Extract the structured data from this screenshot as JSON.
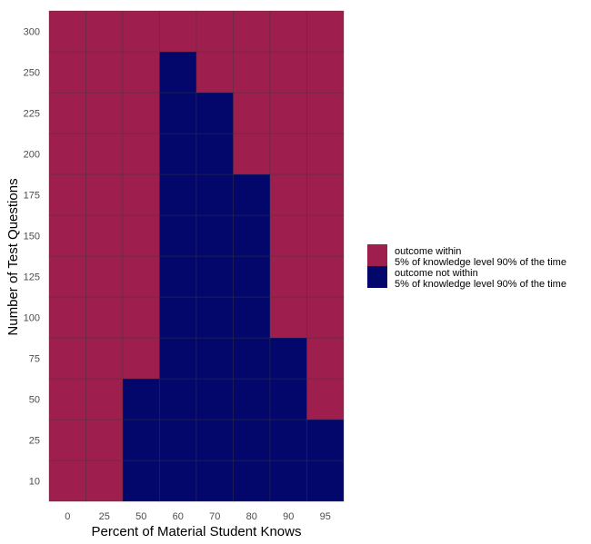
{
  "chart_data": {
    "type": "heatmap",
    "xlabel": "Percent of Material Student Knows",
    "ylabel": "Number of Test Questions",
    "x_categories": [
      "0",
      "25",
      "50",
      "60",
      "70",
      "80",
      "90",
      "95"
    ],
    "y_categories": [
      "10",
      "25",
      "50",
      "75",
      "100",
      "125",
      "150",
      "175",
      "200",
      "225",
      "250",
      "300"
    ],
    "colors": {
      "within": "#9e1f4e",
      "not_within": "#03066b"
    },
    "legend": {
      "placement": "right",
      "entries": [
        {
          "key": "within",
          "line1": "outcome within",
          "line2": "5% of knowledge level 90% of the time"
        },
        {
          "key": "not_within",
          "line1": "outcome not within",
          "line2": "5% of knowledge level 90% of the time"
        }
      ]
    },
    "cells": [
      [
        "within",
        "within",
        "not_within",
        "not_within",
        "not_within",
        "not_within",
        "not_within",
        "not_within"
      ],
      [
        "within",
        "within",
        "not_within",
        "not_within",
        "not_within",
        "not_within",
        "not_within",
        "not_within"
      ],
      [
        "within",
        "within",
        "not_within",
        "not_within",
        "not_within",
        "not_within",
        "not_within",
        "within"
      ],
      [
        "within",
        "within",
        "within",
        "not_within",
        "not_within",
        "not_within",
        "not_within",
        "within"
      ],
      [
        "within",
        "within",
        "within",
        "not_within",
        "not_within",
        "not_within",
        "within",
        "within"
      ],
      [
        "within",
        "within",
        "within",
        "not_within",
        "not_within",
        "not_within",
        "within",
        "within"
      ],
      [
        "within",
        "within",
        "within",
        "not_within",
        "not_within",
        "not_within",
        "within",
        "within"
      ],
      [
        "within",
        "within",
        "within",
        "not_within",
        "not_within",
        "not_within",
        "within",
        "within"
      ],
      [
        "within",
        "within",
        "within",
        "not_within",
        "not_within",
        "within",
        "within",
        "within"
      ],
      [
        "within",
        "within",
        "within",
        "not_within",
        "not_within",
        "within",
        "within",
        "within"
      ],
      [
        "within",
        "within",
        "within",
        "not_within",
        "within",
        "within",
        "within",
        "within"
      ],
      [
        "within",
        "within",
        "within",
        "within",
        "within",
        "within",
        "within",
        "within"
      ]
    ]
  }
}
